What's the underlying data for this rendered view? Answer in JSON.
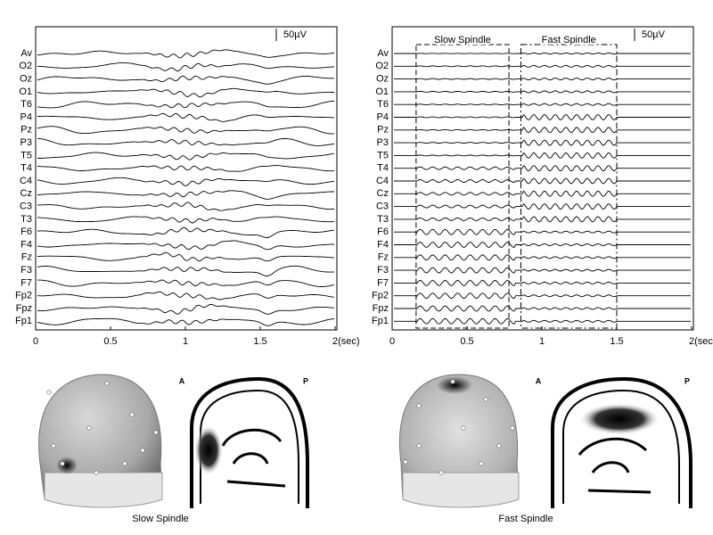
{
  "left_panel": {
    "channels": [
      "Av",
      "O2",
      "Oz",
      "O1",
      "T6",
      "P4",
      "Pz",
      "P3",
      "T5",
      "T4",
      "C4",
      "Cz",
      "C3",
      "T3",
      "F6",
      "F4",
      "Fz",
      "F3",
      "F7",
      "Fp2",
      "Fpz",
      "Fp1"
    ],
    "scale_label": "50µV",
    "xlim": [
      0,
      2
    ],
    "xticks": [
      0,
      0.5,
      1,
      1.5,
      {
        "value": 2,
        "label": "2(sec)"
      }
    ]
  },
  "right_panel": {
    "channels": [
      "Av",
      "O2",
      "Oz",
      "O1",
      "T6",
      "P4",
      "Pz",
      "P3",
      "T5",
      "T4",
      "C4",
      "Cz",
      "C3",
      "T3",
      "F6",
      "F4",
      "Fz",
      "F3",
      "F7",
      "Fp2",
      "Fpz",
      "Fp1"
    ],
    "scale_label": "50µV",
    "window_labels": [
      "Slow Spindle",
      "Fast Spindle"
    ],
    "xlim": [
      0,
      2
    ],
    "xticks": [
      0,
      0.5,
      1,
      1.5,
      {
        "value": 2,
        "label": "2(sec)"
      }
    ]
  },
  "maps": [
    {
      "anterior": "A",
      "posterior": "P",
      "caption": "Slow Spindle"
    },
    {
      "anterior": "A",
      "posterior": "P",
      "caption": "Fast Spindle"
    }
  ]
}
